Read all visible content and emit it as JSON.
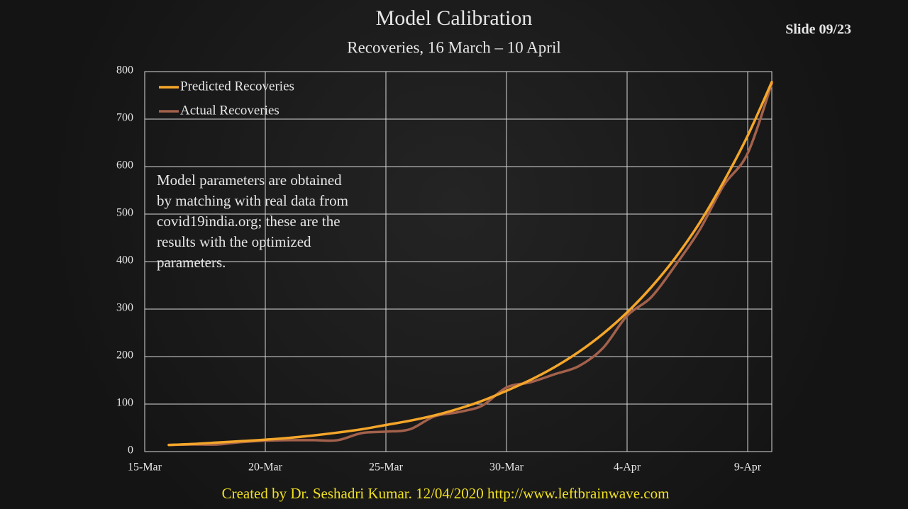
{
  "slide": "Slide 09/23",
  "footer": "Created by Dr. Seshadri Kumar. 12/04/2020 http://www.leftbrainwave.com",
  "chart_data": {
    "type": "line",
    "title": "Model Calibration",
    "subtitle": "Recoveries, 16 March – 10 April",
    "annotation": [
      "Model parameters are obtained",
      "by matching with real data from",
      "covid19india.org; these are the",
      "results with the optimized",
      "parameters."
    ],
    "x": [
      "16-Mar",
      "17-Mar",
      "18-Mar",
      "19-Mar",
      "20-Mar",
      "21-Mar",
      "22-Mar",
      "23-Mar",
      "24-Mar",
      "25-Mar",
      "26-Mar",
      "27-Mar",
      "28-Mar",
      "29-Mar",
      "30-Mar",
      "31-Mar",
      "1-Apr",
      "2-Apr",
      "3-Apr",
      "4-Apr",
      "5-Apr",
      "6-Apr",
      "7-Apr",
      "8-Apr",
      "9-Apr",
      "10-Apr"
    ],
    "series": [
      {
        "name": "Predicted Recoveries",
        "color": "#f4a62a",
        "values": [
          14,
          16,
          19,
          22,
          25,
          29,
          34,
          40,
          47,
          56,
          65,
          76,
          90,
          107,
          128,
          151,
          178,
          210,
          248,
          293,
          346,
          408,
          481,
          568,
          665,
          778
        ]
      },
      {
        "name": "Actual Recoveries",
        "color": "#a3614b",
        "values": [
          14,
          15,
          15,
          20,
          23,
          24,
          24,
          24,
          39,
          42,
          47,
          74,
          83,
          97,
          135,
          146,
          163,
          180,
          218,
          286,
          325,
          392,
          466,
          560,
          628,
          775
        ]
      }
    ],
    "xlim": [
      "15-Mar",
      "10-Apr"
    ],
    "xticks": [
      "15-Mar",
      "20-Mar",
      "25-Mar",
      "30-Mar",
      "4-Apr",
      "9-Apr"
    ],
    "ylim": [
      0,
      800
    ],
    "yticks": [
      0,
      100,
      200,
      300,
      400,
      500,
      600,
      700,
      800
    ],
    "grid": true,
    "legend": "top-left"
  }
}
